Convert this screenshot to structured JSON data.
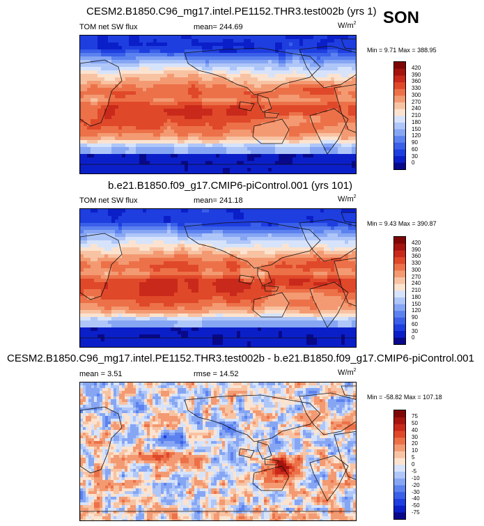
{
  "season": "SON",
  "panels": [
    {
      "title": "CESM2.B1850.C96_mg17.intel.PE1152.THR3.test002b (yrs 1)",
      "left_label": "TOM net SW flux",
      "center_label": "mean=",
      "center_value": "244.69",
      "units_base": "W/m",
      "units_exp": "2",
      "min_label": "Min =",
      "min_value": "9.71",
      "max_label": "Max =",
      "max_value": "388.95",
      "colorbar_ticks": [
        "420",
        "390",
        "360",
        "330",
        "300",
        "270",
        "240",
        "210",
        "180",
        "150",
        "120",
        "90",
        "60",
        "30",
        "0"
      ]
    },
    {
      "title": "b.e21.B1850.f09_g17.CMIP6-piControl.001 (yrs 101)",
      "left_label": "TOM net SW flux",
      "center_label": "mean=",
      "center_value": "241.18",
      "units_base": "W/m",
      "units_exp": "2",
      "min_label": "Min =",
      "min_value": "9.43",
      "max_label": "Max =",
      "max_value": "390.87",
      "colorbar_ticks": [
        "420",
        "390",
        "360",
        "330",
        "300",
        "270",
        "240",
        "210",
        "180",
        "150",
        "120",
        "90",
        "60",
        "30",
        "0"
      ]
    },
    {
      "title": "CESM2.B1850.C96_mg17.intel.PE1152.THR3.test002b - b.e21.B1850.f09_g17.CMIP6-piControl.001",
      "left_label": "mean =",
      "left_value": "3.51",
      "center_label": "rmse =",
      "center_value": "14.52",
      "units_base": "W/m",
      "units_exp": "2",
      "min_label": "Min =",
      "min_value": "-58.82",
      "max_label": "Max =",
      "max_value": "107.18",
      "colorbar_ticks": [
        "75",
        "50",
        "40",
        "30",
        "20",
        "10",
        "5",
        "0",
        "-5",
        "-10",
        "-20",
        "-30",
        "-40",
        "-50",
        "-75"
      ]
    }
  ],
  "chart_data": [
    {
      "type": "heatmap",
      "title": "CESM2.B1850.C96_mg17.intel.PE1152.THR3.test002b (yrs 1)",
      "variable": "TOM net SW flux",
      "units": "W/m2",
      "mean": 244.69,
      "min": 9.71,
      "max": 388.95,
      "levels": [
        0,
        30,
        60,
        90,
        120,
        150,
        180,
        210,
        240,
        270,
        300,
        330,
        360,
        390,
        420
      ]
    },
    {
      "type": "heatmap",
      "title": "b.e21.B1850.f09_g17.CMIP6-piControl.001 (yrs 101)",
      "variable": "TOM net SW flux",
      "units": "W/m2",
      "mean": 241.18,
      "min": 9.43,
      "max": 390.87,
      "levels": [
        0,
        30,
        60,
        90,
        120,
        150,
        180,
        210,
        240,
        270,
        300,
        330,
        360,
        390,
        420
      ]
    },
    {
      "type": "heatmap",
      "title": "CESM2.B1850.C96_mg17.intel.PE1152.THR3.test002b - b.e21.B1850.f09_g17.CMIP6-piControl.001",
      "units": "W/m2",
      "mean": 3.51,
      "rmse": 14.52,
      "min": -58.82,
      "max": 107.18,
      "levels": [
        -75,
        -50,
        -40,
        -30,
        -20,
        -10,
        -5,
        0,
        5,
        10,
        20,
        30,
        40,
        50,
        75
      ]
    }
  ]
}
